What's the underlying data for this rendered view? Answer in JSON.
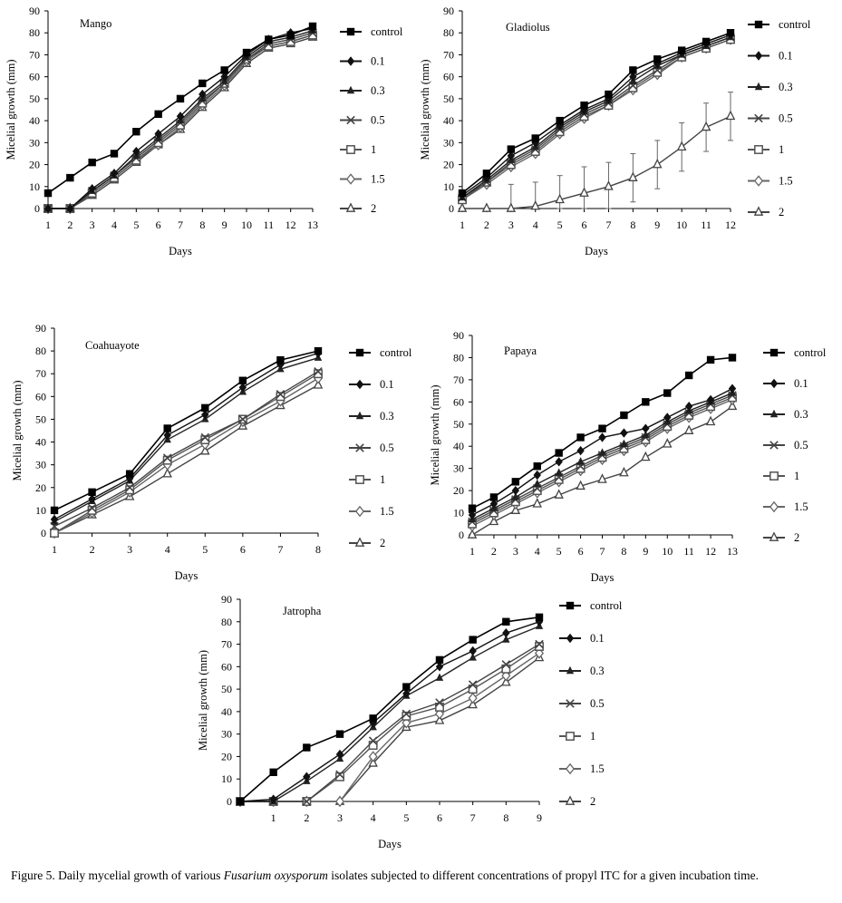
{
  "figure": {
    "caption_prefix": "Figure 5. Daily mycelial growth of various ",
    "caption_species": "Fusarium oxysporum",
    "caption_suffix": " isolates subjected to different concentrations of propyl ITC for a given incubation time."
  },
  "legend_labels": [
    "control",
    "0.1",
    "0.3",
    "0.5",
    "1",
    "1.5",
    "2"
  ],
  "chart_data": [
    {
      "type": "line",
      "title": "Mango",
      "xlabel": "Days",
      "ylabel": "Micelial growth (mm)",
      "x": [
        1,
        2,
        3,
        4,
        5,
        6,
        7,
        8,
        9,
        10,
        11,
        12,
        13
      ],
      "ylim": [
        0,
        90
      ],
      "yticks": [
        0,
        10,
        20,
        30,
        40,
        50,
        60,
        70,
        80,
        90
      ],
      "series": [
        {
          "name": "control",
          "values": [
            7,
            14,
            21,
            25,
            35,
            43,
            50,
            57,
            63,
            71,
            77,
            79,
            83
          ]
        },
        {
          "name": "0.1",
          "values": [
            0,
            0,
            9,
            16,
            26,
            34,
            42,
            52,
            60,
            70,
            77,
            80,
            82
          ]
        },
        {
          "name": "0.3",
          "values": [
            0,
            0,
            8,
            15,
            24,
            32,
            40,
            50,
            58,
            69,
            76,
            78,
            81
          ]
        },
        {
          "name": "0.5",
          "values": [
            0,
            0,
            8,
            15,
            23,
            31,
            39,
            49,
            57,
            68,
            75,
            77,
            80
          ]
        },
        {
          "name": "1",
          "values": [
            0,
            0,
            7,
            14,
            22,
            30,
            38,
            48,
            57,
            68,
            74,
            76,
            79
          ]
        },
        {
          "name": "1.5",
          "values": [
            0,
            0,
            7,
            14,
            22,
            29,
            37,
            47,
            56,
            67,
            74,
            76,
            79
          ]
        },
        {
          "name": "2",
          "values": [
            0,
            0,
            6,
            13,
            21,
            29,
            36,
            46,
            55,
            66,
            73,
            75,
            78
          ]
        }
      ]
    },
    {
      "type": "line",
      "title": "Gladiolus",
      "xlabel": "Days",
      "ylabel": "Micelial growth (mm)",
      "x": [
        1,
        2,
        3,
        4,
        5,
        6,
        7,
        8,
        9,
        10,
        11,
        12
      ],
      "ylim": [
        0,
        90
      ],
      "yticks": [
        0,
        10,
        20,
        30,
        40,
        50,
        60,
        70,
        80,
        90
      ],
      "series": [
        {
          "name": "control",
          "values": [
            7,
            16,
            27,
            32,
            40,
            47,
            52,
            63,
            68,
            72,
            76,
            80
          ]
        },
        {
          "name": "0.1",
          "values": [
            6,
            14,
            24,
            30,
            38,
            45,
            50,
            60,
            66,
            71,
            75,
            79
          ]
        },
        {
          "name": "0.3",
          "values": [
            5,
            13,
            22,
            28,
            37,
            44,
            49,
            58,
            65,
            70,
            74,
            78
          ]
        },
        {
          "name": "0.5",
          "values": [
            5,
            12,
            21,
            27,
            36,
            43,
            48,
            56,
            63,
            70,
            74,
            78
          ]
        },
        {
          "name": "1",
          "values": [
            4,
            12,
            20,
            26,
            35,
            42,
            47,
            55,
            62,
            69,
            73,
            77
          ]
        },
        {
          "name": "1.5",
          "values": [
            4,
            11,
            19,
            25,
            34,
            41,
            47,
            54,
            61,
            69,
            73,
            77
          ]
        },
        {
          "name": "2",
          "values": [
            0,
            0,
            0,
            1,
            4,
            7,
            10,
            14,
            20,
            28,
            37,
            42
          ],
          "error": [
            0,
            0,
            11,
            11,
            11,
            12,
            11,
            11,
            11,
            11,
            11,
            11
          ]
        }
      ]
    },
    {
      "type": "line",
      "title": "Coahuayote",
      "xlabel": "Days",
      "ylabel": "Micelial growth (mm)",
      "x": [
        1,
        2,
        3,
        4,
        5,
        6,
        7,
        8
      ],
      "ylim": [
        0,
        90
      ],
      "yticks": [
        0,
        10,
        20,
        30,
        40,
        50,
        60,
        70,
        80,
        90
      ],
      "series": [
        {
          "name": "control",
          "values": [
            10,
            18,
            26,
            46,
            55,
            67,
            76,
            80
          ]
        },
        {
          "name": "0.1",
          "values": [
            6,
            15,
            24,
            43,
            52,
            64,
            74,
            79
          ]
        },
        {
          "name": "0.3",
          "values": [
            5,
            14,
            23,
            41,
            50,
            62,
            72,
            77
          ]
        },
        {
          "name": "0.5",
          "values": [
            3,
            11,
            20,
            33,
            42,
            50,
            61,
            71
          ]
        },
        {
          "name": "1",
          "values": [
            0,
            10,
            19,
            32,
            41,
            50,
            60,
            70
          ]
        },
        {
          "name": "1.5",
          "values": [
            0,
            9,
            18,
            30,
            39,
            49,
            58,
            68
          ]
        },
        {
          "name": "2",
          "values": [
            0,
            8,
            16,
            26,
            36,
            47,
            56,
            65
          ]
        }
      ]
    },
    {
      "type": "line",
      "title": "Papaya",
      "xlabel": "Days",
      "ylabel": "Micelial growth (mm)",
      "x": [
        1,
        2,
        3,
        4,
        5,
        6,
        7,
        8,
        9,
        10,
        11,
        12,
        13
      ],
      "ylim": [
        0,
        90
      ],
      "yticks": [
        0,
        10,
        20,
        30,
        40,
        50,
        60,
        70,
        80,
        90
      ],
      "series": [
        {
          "name": "control",
          "values": [
            12,
            17,
            24,
            31,
            37,
            44,
            48,
            54,
            60,
            64,
            72,
            79,
            80
          ]
        },
        {
          "name": "0.1",
          "values": [
            9,
            14,
            20,
            27,
            33,
            38,
            44,
            46,
            48,
            53,
            58,
            61,
            66
          ]
        },
        {
          "name": "0.3",
          "values": [
            7,
            12,
            17,
            23,
            28,
            33,
            37,
            41,
            45,
            51,
            56,
            60,
            64
          ]
        },
        {
          "name": "0.5",
          "values": [
            6,
            11,
            16,
            21,
            26,
            31,
            36,
            40,
            44,
            50,
            55,
            59,
            63
          ]
        },
        {
          "name": "1",
          "values": [
            5,
            10,
            15,
            20,
            25,
            30,
            35,
            39,
            43,
            49,
            54,
            58,
            62
          ]
        },
        {
          "name": "1.5",
          "values": [
            4,
            9,
            14,
            19,
            24,
            29,
            34,
            38,
            42,
            48,
            53,
            57,
            61
          ]
        },
        {
          "name": "2",
          "values": [
            0,
            6,
            11,
            14,
            18,
            22,
            25,
            28,
            35,
            41,
            47,
            51,
            58
          ]
        }
      ]
    },
    {
      "type": "line",
      "title": "Jatropha",
      "xlabel": "Days",
      "ylabel": "Micelial growth (mm)",
      "x": [
        0,
        1,
        2,
        3,
        4,
        5,
        6,
        7,
        8,
        9
      ],
      "xticks": [
        1,
        2,
        3,
        4,
        5,
        6,
        7,
        8,
        9
      ],
      "ylim": [
        0,
        90
      ],
      "yticks": [
        0,
        10,
        20,
        30,
        40,
        50,
        60,
        70,
        80,
        90
      ],
      "series": [
        {
          "name": "control",
          "values": [
            0,
            13,
            24,
            30,
            37,
            51,
            63,
            72,
            80,
            82
          ]
        },
        {
          "name": "0.1",
          "values": [
            0,
            1,
            11,
            21,
            35,
            48,
            60,
            67,
            75,
            80
          ]
        },
        {
          "name": "0.3",
          "values": [
            0,
            0,
            9,
            19,
            33,
            47,
            55,
            64,
            72,
            78
          ]
        },
        {
          "name": "0.5",
          "values": [
            0,
            0,
            0,
            12,
            27,
            39,
            44,
            52,
            61,
            70
          ]
        },
        {
          "name": "1",
          "values": [
            0,
            0,
            0,
            11,
            25,
            38,
            42,
            50,
            59,
            69
          ]
        },
        {
          "name": "1.5",
          "values": [
            0,
            0,
            0,
            0,
            20,
            35,
            39,
            46,
            56,
            66
          ]
        },
        {
          "name": "2",
          "values": [
            0,
            0,
            0,
            0,
            17,
            33,
            36,
            43,
            53,
            64
          ]
        }
      ]
    }
  ]
}
